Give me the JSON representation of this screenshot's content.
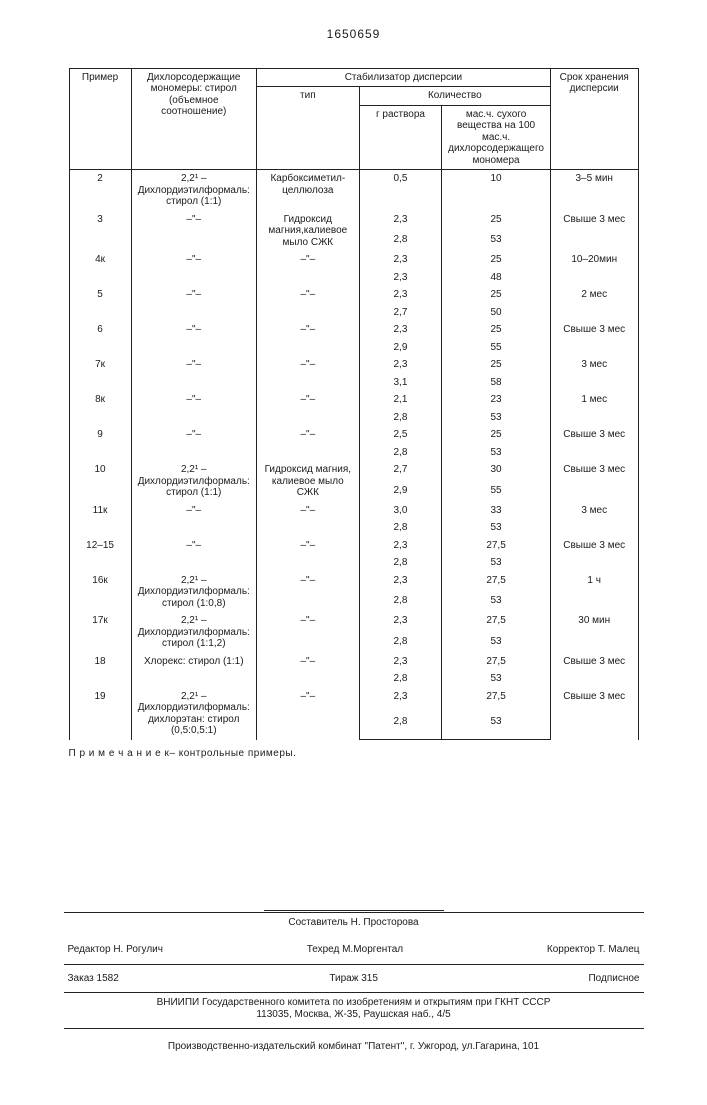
{
  "docNumber": "1650659",
  "headers": {
    "c1": "Пример",
    "c2": "Дихлорсодержащие мономеры: стирол (объемное соотношение)",
    "stab": "Стабилизатор дисперсии",
    "type": "тип",
    "qty": "Количество",
    "q1": "г раствора",
    "q2": "мас.ч. сухого вещества на 100 мас.ч. дихлорсодержащего мономера",
    "c5": "Срок хранения дисперсии"
  },
  "rows": [
    {
      "ex": "2",
      "mono": "2,2¹ – Дихлордиэтилформаль: стирол (1:1)",
      "type": "Карбоксиметил-целлюлоза",
      "q": [
        "0,5"
      ],
      "m": [
        "10"
      ],
      "shelf": "3–5 мин"
    },
    {
      "ex": "3",
      "mono": "–\"–",
      "type": "Гидроксид магния,калиевое мыло СЖК",
      "q": [
        "2,3",
        "2,8"
      ],
      "m": [
        "25",
        "53"
      ],
      "shelf": "Свыше 3 мес"
    },
    {
      "ex": "4к",
      "mono": "–\"–",
      "type": "–\"–",
      "q": [
        "2,3",
        "2,3"
      ],
      "m": [
        "25",
        "48"
      ],
      "shelf": "10–20мин"
    },
    {
      "ex": "5",
      "mono": "–\"–",
      "type": "–\"–",
      "q": [
        "2,3",
        "2,7"
      ],
      "m": [
        "25",
        "50"
      ],
      "shelf": "2 мес"
    },
    {
      "ex": "6",
      "mono": "–\"–",
      "type": "–\"–",
      "q": [
        "2,3",
        "2,9"
      ],
      "m": [
        "25",
        "55"
      ],
      "shelf": "Свыше 3 мес"
    },
    {
      "ex": "7к",
      "mono": "–\"–",
      "type": "–\"–",
      "q": [
        "2,3",
        "3,1"
      ],
      "m": [
        "25",
        "58"
      ],
      "shelf": "3  мес"
    },
    {
      "ex": "8к",
      "mono": "–\"–",
      "type": "–\"–",
      "q": [
        "2,1",
        "2,8"
      ],
      "m": [
        "23",
        "53"
      ],
      "shelf": "1 мес"
    },
    {
      "ex": "9",
      "mono": "–\"–",
      "type": "–\"–",
      "q": [
        "2,5",
        "2,8"
      ],
      "m": [
        "25",
        "53"
      ],
      "shelf": "Свыше 3 мес"
    },
    {
      "ex": "10",
      "mono": "2,2¹ – Дихлордиэтилформаль: стирол (1:1)",
      "type": "Гидроксид магния, калиевое мыло СЖК",
      "q": [
        "2,7",
        "2,9"
      ],
      "m": [
        "30",
        "55"
      ],
      "shelf": "Свыше 3 мес"
    },
    {
      "ex": "11к",
      "mono": "–\"–",
      "type": "–\"–",
      "q": [
        "3,0",
        "2,8"
      ],
      "m": [
        "33",
        "53"
      ],
      "shelf": "3 мес"
    },
    {
      "ex": "12–15",
      "mono": "–\"–",
      "type": "–\"–",
      "q": [
        "2,3",
        "2,8"
      ],
      "m": [
        "27,5",
        "53"
      ],
      "shelf": "Свыше 3 мес"
    },
    {
      "ex": "16к",
      "mono": "2,2¹ – Дихлордиэтилформаль: стирол (1:0,8)",
      "type": "–\"–",
      "q": [
        "2,3",
        "2,8"
      ],
      "m": [
        "27,5",
        "53"
      ],
      "shelf": "1 ч"
    },
    {
      "ex": "17к",
      "mono": "2,2¹ – Дихлордиэтилформаль: стирол (1:1,2)",
      "type": "–\"–",
      "q": [
        "2,3",
        "2,8"
      ],
      "m": [
        "27,5",
        "53"
      ],
      "shelf": "30 мин"
    },
    {
      "ex": "18",
      "mono": "Хлорекс: стирол (1:1)",
      "type": "–\"–",
      "q": [
        "2,3",
        "2,8"
      ],
      "m": [
        "27,5",
        "53"
      ],
      "shelf": "Свыше 3 мес"
    },
    {
      "ex": "19",
      "mono": "2,2¹ – Дихлордиэтилформаль: дихлорэтан: стирол (0,5:0,5:1)",
      "type": "–\"–",
      "q": [
        "2,3",
        "2,8"
      ],
      "m": [
        "27,5",
        "53"
      ],
      "shelf": "Свыше 3 мес"
    }
  ],
  "footnote": "П р и м е ч а н и е    к– контрольные примеры.",
  "credits": {
    "compiler": "Составитель  Н. Просторова",
    "editor": "Редактор  Н. Рогулич",
    "techred": "Техред М.Моргентал",
    "corrector": "Корректор  Т. Малец",
    "order": "Заказ 1582",
    "circ": "Тираж 315",
    "sub": "Подписное",
    "inst": "ВНИИПИ Государственного комитета по изобретениям и открытиям при ГКНТ СССР",
    "addr": "113035, Москва, Ж-35, Раушская наб., 4/5",
    "pub": "Производственно-издательский комбинат \"Патент\", г. Ужгород, ул.Гагарина, 101"
  }
}
